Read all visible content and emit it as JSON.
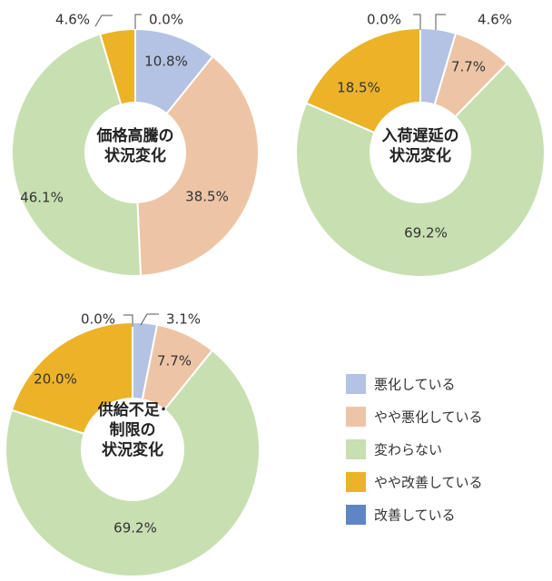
{
  "chart_data": [
    {
      "type": "donut",
      "title": "価格高騰の\n状況変化",
      "categories": [
        "悪化している",
        "やや悪化している",
        "変わらない",
        "やや改善している",
        "改善している"
      ],
      "values": [
        10.8,
        38.5,
        46.1,
        4.6,
        0.0
      ],
      "value_labels": [
        "10.8%",
        "38.5%",
        "46.1%",
        "4.6%",
        "0.0%"
      ]
    },
    {
      "type": "donut",
      "title": "入荷遅延の\n状況変化",
      "categories": [
        "悪化している",
        "やや悪化している",
        "変わらない",
        "やや改善している",
        "改善している"
      ],
      "values": [
        4.6,
        7.7,
        69.2,
        18.5,
        0.0
      ],
      "value_labels": [
        "4.6%",
        "7.7%",
        "69.2%",
        "18.5%",
        "0.0%"
      ]
    },
    {
      "type": "donut",
      "title": "供給不足･\n制限の\n状況変化",
      "categories": [
        "悪化している",
        "やや悪化している",
        "変わらない",
        "やや改善している",
        "改善している"
      ],
      "values": [
        3.1,
        7.7,
        69.2,
        20.0,
        0.0
      ],
      "value_labels": [
        "3.1%",
        "7.7%",
        "69.2%",
        "20.0%",
        "0.0%"
      ]
    }
  ],
  "legend": {
    "items": [
      {
        "label": "悪化している",
        "color": "#b4c3e3"
      },
      {
        "label": "やや悪化している",
        "color": "#edc5a6"
      },
      {
        "label": "変わらない",
        "color": "#c8dfb2"
      },
      {
        "label": "やや改善している",
        "color": "#ecb328"
      },
      {
        "label": "改善している",
        "color": "#5f86c4"
      }
    ]
  },
  "colors": {
    "slice_border": "#ffffff",
    "leader_line": "#555555"
  }
}
